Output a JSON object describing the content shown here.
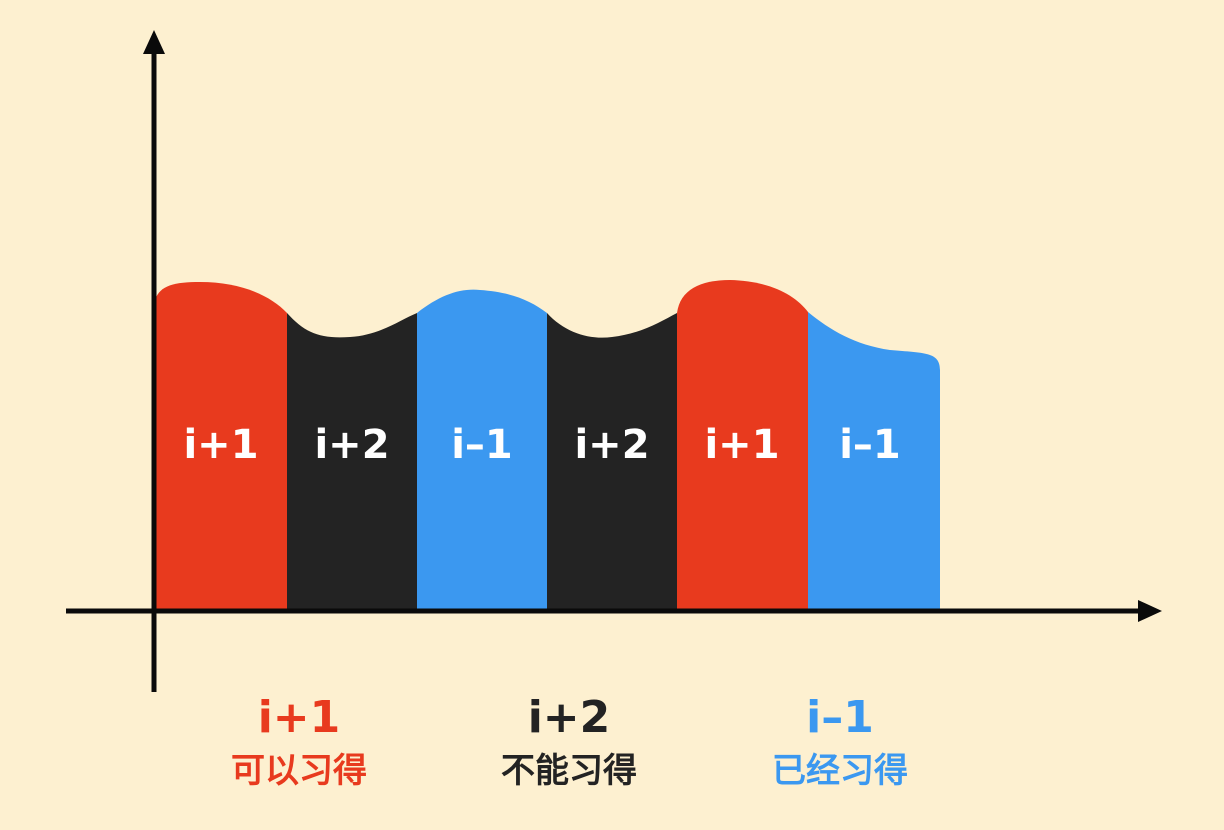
{
  "colors": {
    "background": "#fdf0d0",
    "red": "#e83a1e",
    "black": "#232323",
    "blue": "#3b98f0",
    "axis": "#0a0a0a",
    "segment_text": "#ffffff"
  },
  "segments": [
    {
      "label": "i+1",
      "color": "red"
    },
    {
      "label": "i+2",
      "color": "black"
    },
    {
      "label": "i–1",
      "color": "blue"
    },
    {
      "label": "i+2",
      "color": "black"
    },
    {
      "label": "i+1",
      "color": "red"
    },
    {
      "label": "i–1",
      "color": "blue"
    }
  ],
  "legend": [
    {
      "code": "i+1",
      "desc": "可以习得",
      "color": "red"
    },
    {
      "code": "i+2",
      "desc": "不能习得",
      "color": "black"
    },
    {
      "code": "i–1",
      "desc": "已经习得",
      "color": "blue"
    }
  ]
}
